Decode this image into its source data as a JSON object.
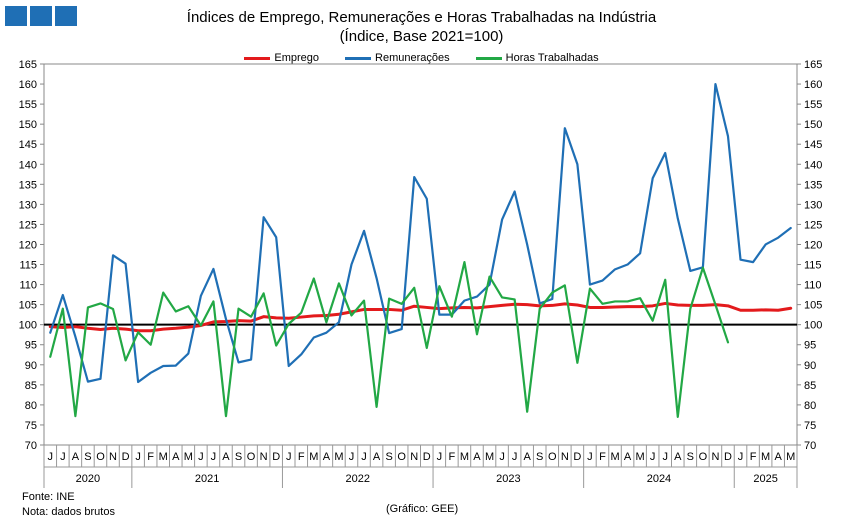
{
  "header": {
    "title_line1": "Índices de Emprego, Remunerações e Horas Trabalhadas na Indústria",
    "title_line2": "(Índice, Base 2021=100)",
    "logo_color": "#1f6fb5"
  },
  "footer": {
    "source": "Fonte: INE",
    "note": "Nota: dados brutos",
    "credit": "(Gráfico: GEE)"
  },
  "chart_data": {
    "type": "line",
    "title": "Índices de Emprego, Remunerações e Horas Trabalhadas na Indústria",
    "subtitle": "(Índice, Base 2021=100)",
    "ylim": [
      70,
      165
    ],
    "y_ticks": [
      70,
      75,
      80,
      85,
      90,
      95,
      100,
      105,
      110,
      115,
      120,
      125,
      130,
      135,
      140,
      145,
      150,
      155,
      160,
      165
    ],
    "y_axis_right": true,
    "reference_line": 100,
    "legend_position": "top-center",
    "grid": false,
    "x": [
      "J",
      "J",
      "A",
      "S",
      "O",
      "N",
      "D",
      "J",
      "F",
      "M",
      "A",
      "M",
      "J",
      "J",
      "A",
      "S",
      "O",
      "N",
      "D",
      "J",
      "F",
      "M",
      "A",
      "M",
      "J",
      "J",
      "A",
      "S",
      "O",
      "N",
      "D",
      "J",
      "F",
      "M",
      "A",
      "M",
      "J",
      "J",
      "A",
      "S",
      "O",
      "N",
      "D",
      "J",
      "F",
      "M",
      "A",
      "M",
      "J",
      "J",
      "A",
      "S",
      "O",
      "N",
      "D",
      "J",
      "F",
      "M",
      "A",
      "M"
    ],
    "years": [
      {
        "label": "2020",
        "start": 0,
        "end": 6
      },
      {
        "label": "2021",
        "start": 7,
        "end": 18
      },
      {
        "label": "2022",
        "start": 19,
        "end": 30
      },
      {
        "label": "2023",
        "start": 31,
        "end": 42
      },
      {
        "label": "2024",
        "start": 43,
        "end": 54
      },
      {
        "label": "2025",
        "start": 55,
        "end": 59
      }
    ],
    "series": [
      {
        "name": "Emprego",
        "color": "#e31a1c",
        "values": [
          99.5,
          99.3,
          99.5,
          99.1,
          98.8,
          99.1,
          98.9,
          98.5,
          98.5,
          98.9,
          99.1,
          99.4,
          99.8,
          100.7,
          100.8,
          101.0,
          100.9,
          102.0,
          101.7,
          101.6,
          101.9,
          102.2,
          102.3,
          102.6,
          103.2,
          103.8,
          103.8,
          103.8,
          103.6,
          104.6,
          104.3,
          104.0,
          104.2,
          104.3,
          104.2,
          104.5,
          104.8,
          105.1,
          105.0,
          104.7,
          104.8,
          105.2,
          104.9,
          104.3,
          104.3,
          104.4,
          104.5,
          104.5,
          104.7,
          105.3,
          104.9,
          104.8,
          104.8,
          105.0,
          104.7,
          103.6,
          103.6,
          103.7,
          103.6,
          104.1
        ]
      },
      {
        "name": "Remunerações",
        "color": "#1f6fb5",
        "values": [
          98.0,
          107.4,
          97.0,
          85.8,
          86.5,
          117.3,
          115.2,
          85.7,
          88.0,
          89.7,
          89.8,
          92.8,
          107.2,
          113.9,
          101.4,
          90.6,
          91.3,
          126.8,
          121.8,
          89.7,
          92.6,
          96.8,
          98.0,
          100.6,
          115.0,
          123.4,
          111.6,
          97.9,
          98.9,
          136.8,
          131.4,
          102.5,
          102.5,
          106.0,
          107.0,
          110.0,
          126.2,
          133.2,
          120.0,
          105.3,
          106.4,
          149.0,
          140.0,
          110.0,
          111.0,
          113.8,
          115.0,
          117.8,
          136.5,
          142.8,
          126.5,
          113.4,
          114.3,
          160.0,
          147.0,
          116.2,
          115.6,
          120.0,
          121.7,
          124.1
        ]
      },
      {
        "name": "Horas Trabalhadas",
        "color": "#22a845",
        "values": [
          92.0,
          104.0,
          77.2,
          104.3,
          105.3,
          103.9,
          91.1,
          98.1,
          95.0,
          108.0,
          103.3,
          104.6,
          99.8,
          105.8,
          77.2,
          104.0,
          102.0,
          107.8,
          94.8,
          100.2,
          103.0,
          111.5,
          100.6,
          110.3,
          102.3,
          106.0,
          79.5,
          106.5,
          105.2,
          109.2,
          94.2,
          109.6,
          102.0,
          115.6,
          97.6,
          112.0,
          106.8,
          106.3,
          78.3,
          104.0,
          108.0,
          109.8,
          90.5,
          109.0,
          105.2,
          105.8,
          105.8,
          106.6,
          101.0,
          111.2,
          77.0,
          104.0,
          114.2,
          105.0,
          95.6,
          null,
          null,
          null,
          null,
          null
        ]
      }
    ]
  }
}
